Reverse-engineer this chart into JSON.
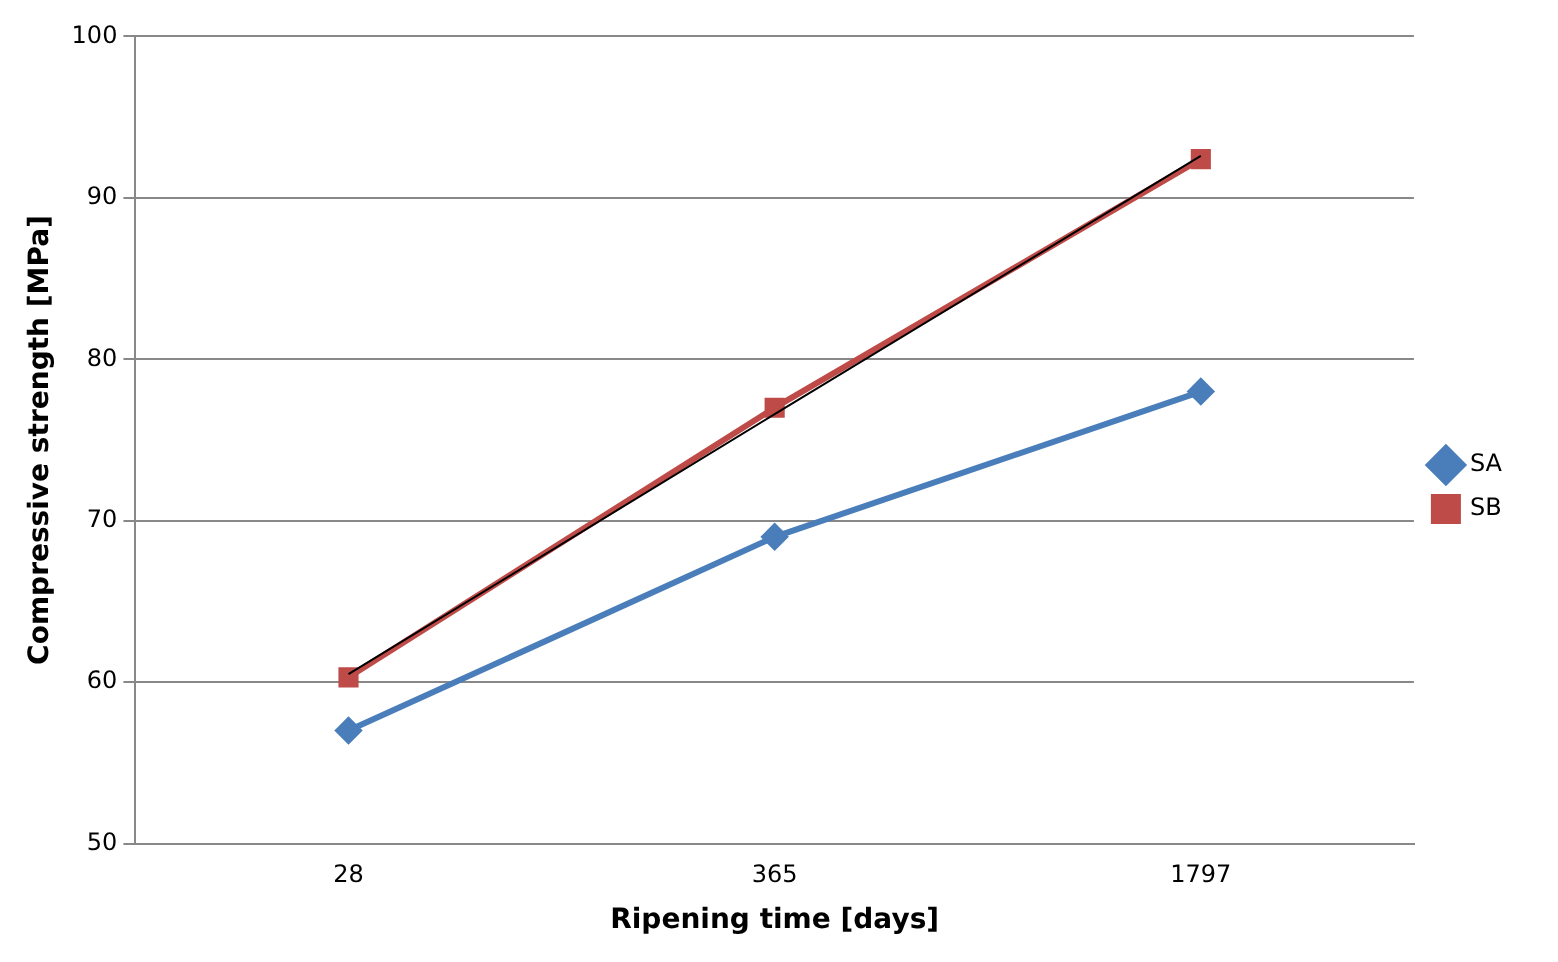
{
  "chart_data": {
    "type": "line",
    "xlabel": "Ripening time [days]",
    "ylabel": "Compressive strength [MPa]",
    "categories": [
      "28",
      "365",
      "1797"
    ],
    "series": [
      {
        "name": "SA",
        "color": "#4a7ebb",
        "values": [
          57,
          69,
          78
        ],
        "marker": "diamond"
      },
      {
        "name": "SB",
        "color": "#be4b48",
        "values": [
          60.3,
          77.0,
          92.4
        ],
        "marker": "square"
      },
      {
        "type": "line",
        "color": "#000000",
        "values": [
          60.5,
          76.6,
          92.6
        ],
        "marker": "none"
      }
    ],
    "ylim": [
      50,
      100
    ],
    "yticks": [
      50,
      60,
      70,
      80,
      90,
      100
    ],
    "grid": "y",
    "legend": "right"
  }
}
